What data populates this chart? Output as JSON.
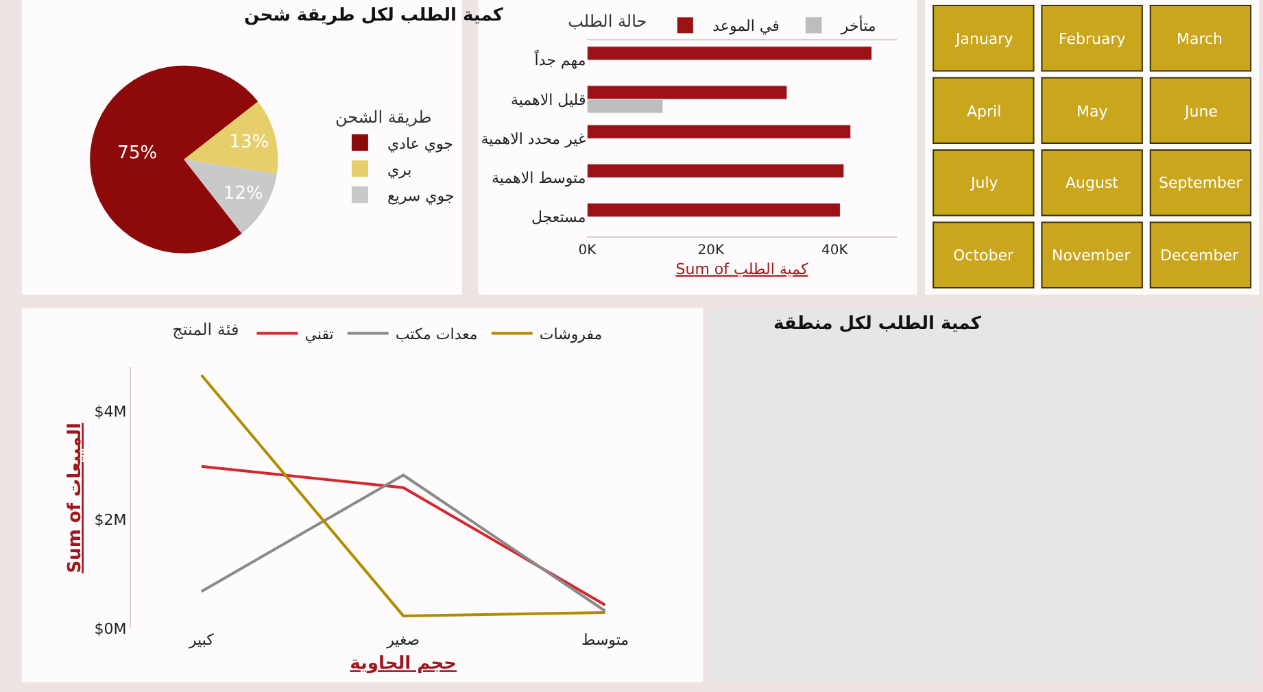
{
  "chart_data": [
    {
      "type": "pie",
      "title": "كمية الطلب لكل طريقة شحن",
      "legend_title": "طريقة الشحن",
      "legend": "right",
      "categories": [
        "جوي عادي",
        "بري",
        "جوي سريع"
      ],
      "values": [
        75,
        13,
        12
      ],
      "colors": [
        "#8e0a0a",
        "#e6cf6a",
        "#c9c9c9"
      ],
      "value_labels": [
        "75%",
        "13%",
        "12%"
      ]
    },
    {
      "type": "bar",
      "orientation": "horizontal",
      "legend_title": "حالة الطلب",
      "legend": "top",
      "xlabel": "Sum of كمية الطلب",
      "categories": [
        "مهم جداً",
        "قليل الاهمية",
        "غير محدد الاهمية",
        "متوسط الاهمية",
        "مستعجل"
      ],
      "xlim": [
        0,
        50000
      ],
      "xticks": [
        {
          "value": 0,
          "label": "0K"
        },
        {
          "value": 20000,
          "label": "20K"
        },
        {
          "value": 40000,
          "label": "40K"
        }
      ],
      "series": [
        {
          "name": "في الموعد",
          "color": "#9b1116",
          "values": [
            46000,
            32300,
            42600,
            41500,
            40900
          ]
        },
        {
          "name": "متأخر",
          "color": "#bdbdbd",
          "values": [
            null,
            12200,
            null,
            null,
            null
          ]
        }
      ]
    },
    {
      "type": "other",
      "annotations": [
        "January",
        "February",
        "March",
        "April",
        "May",
        "June",
        "July",
        "August",
        "September",
        "October",
        "November",
        "December"
      ],
      "color": "#c9a61b"
    },
    {
      "type": "line",
      "legend_title": "فئة المنتج",
      "legend": "top",
      "xlabel": "حجم الحاوية",
      "ylabel": "Sum of المبيعات",
      "categories": [
        "كبير",
        "صغير",
        "متوسط"
      ],
      "ylim": [
        0,
        4800000
      ],
      "yticks": [
        {
          "value": 0,
          "label": "$0M"
        },
        {
          "value": 2000000,
          "label": "$2M"
        },
        {
          "value": 4000000,
          "label": "$4M"
        }
      ],
      "series": [
        {
          "name": "تقني",
          "color": "#d3272e",
          "values": [
            2980000,
            2590000,
            430000
          ]
        },
        {
          "name": "معدات مكتب",
          "color": "#8a8a8a",
          "values": [
            680000,
            2820000,
            320000
          ]
        },
        {
          "name": "مفروشات",
          "color": "#b08c00",
          "values": [
            4660000,
            230000,
            290000
          ]
        }
      ]
    },
    {
      "type": "other",
      "title": "كمية الطلب لكل منطقة",
      "color": "#e6e6e6"
    }
  ]
}
